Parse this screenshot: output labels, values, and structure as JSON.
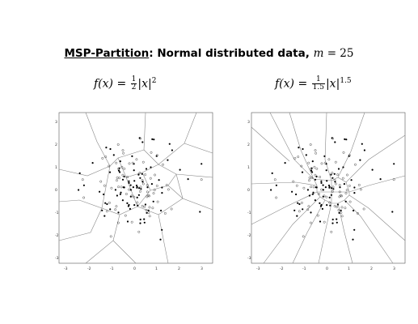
{
  "title": {
    "lead": "MSP-Partition",
    "rest": ": Normal distributed data,",
    "var": "m",
    "eq": " = 25"
  },
  "panels": [
    {
      "formula": {
        "fx": "f(x) = ",
        "num": "1",
        "den": "2",
        "abs": "|x|",
        "exp": "2"
      },
      "x_ticks": [
        "-3",
        "-2",
        "-1",
        "0",
        "1",
        "2",
        "3"
      ],
      "y_ticks": [
        "3",
        "2",
        "1",
        "0",
        "-1",
        "-2",
        "-3"
      ]
    },
    {
      "formula": {
        "fx": "f(x) = ",
        "num": "1",
        "den": "1.5",
        "abs": "|x|",
        "exp": "1.5"
      },
      "x_ticks": [
        "-3",
        "-2",
        "-1",
        "0",
        "1",
        "2",
        "3"
      ],
      "y_ticks": [
        "3",
        "2",
        "1",
        "0",
        "-1",
        "-2",
        "-3"
      ]
    }
  ],
  "point_colors": {
    "filled": "#000000",
    "open": "#000000"
  }
}
